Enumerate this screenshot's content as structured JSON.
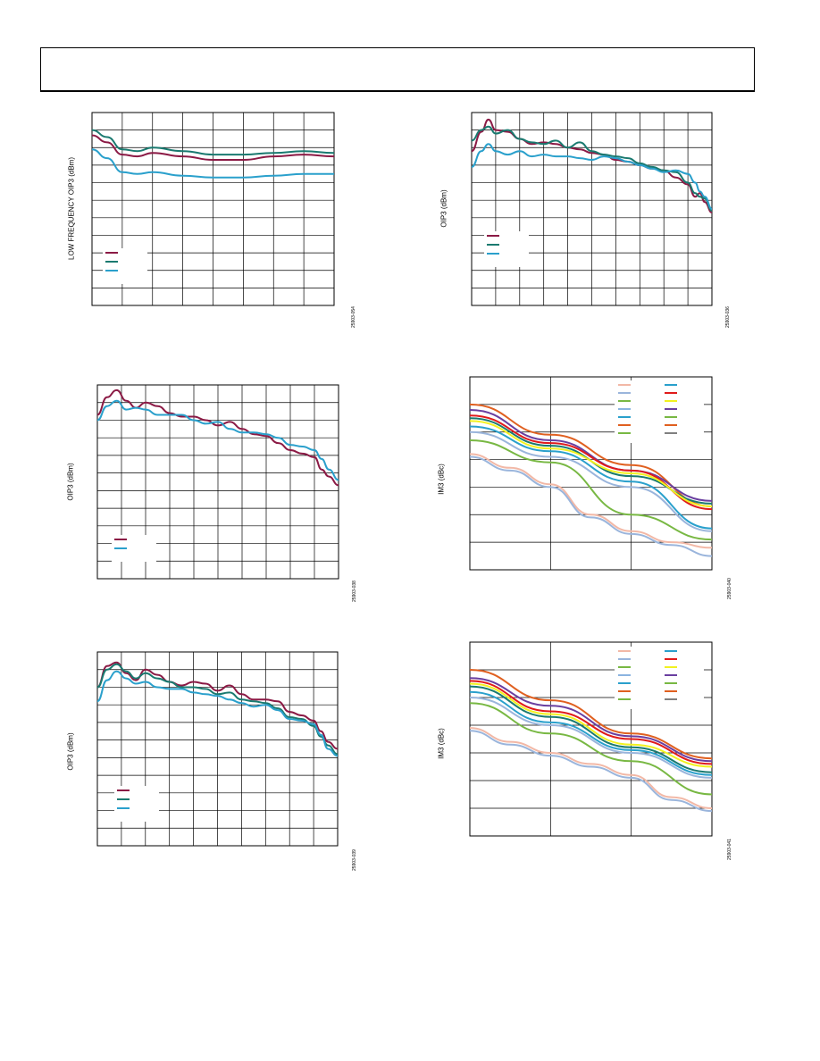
{
  "header": {},
  "chart_data": [
    {
      "type": "line",
      "ylabel": "LOW FREQUENCY OIP3 (dBm)",
      "figure_id": "25903-054",
      "grid": true,
      "grid_x_divisions": 8,
      "grid_y_divisions": 11,
      "xlim": [
        0,
        8
      ],
      "ylim": [
        0,
        11
      ],
      "legend_position": "lower-left",
      "series": [
        {
          "color": "#8b1a45",
          "x": [
            0,
            0.5,
            1,
            1.5,
            2,
            3,
            4,
            5,
            6,
            7,
            8
          ],
          "y": [
            9.7,
            9.3,
            8.6,
            8.5,
            8.7,
            8.5,
            8.3,
            8.3,
            8.5,
            8.6,
            8.5
          ]
        },
        {
          "color": "#1a7a70",
          "x": [
            0,
            0.5,
            1,
            1.5,
            2,
            3,
            4,
            5,
            6,
            7,
            8
          ],
          "y": [
            10.0,
            9.6,
            8.9,
            8.8,
            9.0,
            8.8,
            8.6,
            8.6,
            8.7,
            8.8,
            8.7
          ]
        },
        {
          "color": "#2aa0cc",
          "x": [
            0,
            0.5,
            1,
            1.5,
            2,
            3,
            4,
            5,
            6,
            7,
            8
          ],
          "y": [
            8.9,
            8.4,
            7.6,
            7.5,
            7.6,
            7.4,
            7.3,
            7.3,
            7.4,
            7.5,
            7.5
          ]
        }
      ]
    },
    {
      "type": "line",
      "ylabel": "OIP3 (dBm)",
      "figure_id": "25903-036",
      "grid": true,
      "grid_x_divisions": 10,
      "grid_y_divisions": 11,
      "xlim": [
        0,
        10
      ],
      "ylim": [
        0,
        11
      ],
      "legend_position": "lower-left",
      "series": [
        {
          "color": "#8b1a45",
          "x": [
            0,
            0.4,
            0.7,
            1,
            1.5,
            2,
            2.5,
            3,
            3.5,
            4,
            4.5,
            5,
            5.5,
            6,
            6.5,
            7,
            7.5,
            8,
            8.5,
            9,
            9.3,
            9.5,
            9.7,
            10
          ],
          "y": [
            8.8,
            9.9,
            10.6,
            10.0,
            9.9,
            9.5,
            9.2,
            9.3,
            9.2,
            9.0,
            8.9,
            8.7,
            8.6,
            8.3,
            8.2,
            8.0,
            7.8,
            7.7,
            7.3,
            6.9,
            6.2,
            6.4,
            5.9,
            5.3
          ]
        },
        {
          "color": "#1a7a70",
          "x": [
            0,
            0.4,
            0.7,
            1,
            1.5,
            2,
            2.5,
            3,
            3.5,
            4,
            4.5,
            5,
            5.5,
            6,
            6.5,
            7,
            7.5,
            8,
            8.5,
            9,
            9.3,
            9.5,
            9.7,
            10
          ],
          "y": [
            9.4,
            10.0,
            10.2,
            9.8,
            10.0,
            9.5,
            9.3,
            9.2,
            9.4,
            9.0,
            9.3,
            8.8,
            8.6,
            8.5,
            8.4,
            8.1,
            7.9,
            7.7,
            7.6,
            7.0,
            6.4,
            6.2,
            6.1,
            5.4
          ]
        },
        {
          "color": "#2aa0cc",
          "x": [
            0,
            0.4,
            0.7,
            1,
            1.5,
            2,
            2.5,
            3,
            3.5,
            4,
            4.5,
            5,
            5.5,
            6,
            6.5,
            7,
            7.5,
            8,
            8.5,
            9,
            9.3,
            9.5,
            9.7,
            10
          ],
          "y": [
            7.9,
            8.8,
            9.2,
            8.8,
            8.6,
            8.8,
            8.5,
            8.6,
            8.5,
            8.5,
            8.4,
            8.3,
            8.5,
            8.4,
            8.2,
            8.0,
            7.8,
            7.6,
            7.7,
            7.5,
            7.0,
            6.5,
            6.2,
            5.5
          ]
        }
      ]
    },
    {
      "type": "line",
      "ylabel": "OIP3 (dBm)",
      "figure_id": "25903-038",
      "grid": true,
      "grid_x_divisions": 10,
      "grid_y_divisions": 11,
      "xlim": [
        0,
        10
      ],
      "ylim": [
        0,
        11
      ],
      "legend_position": "lower-left",
      "series": [
        {
          "color": "#8b1a45",
          "x": [
            0,
            0.4,
            0.8,
            1.2,
            1.6,
            2,
            2.5,
            3,
            3.5,
            4,
            4.5,
            5,
            5.5,
            6,
            6.5,
            7,
            7.5,
            8,
            8.5,
            9,
            9.3,
            9.6,
            10
          ],
          "y": [
            9.3,
            10.3,
            10.7,
            10.1,
            9.7,
            10.0,
            9.8,
            9.4,
            9.2,
            9.2,
            9.0,
            8.7,
            8.9,
            8.5,
            8.2,
            8.1,
            7.7,
            7.3,
            7.1,
            6.9,
            6.2,
            5.8,
            5.3
          ]
        },
        {
          "color": "#2aa0cc",
          "x": [
            0,
            0.4,
            0.8,
            1.2,
            1.6,
            2,
            2.5,
            3,
            3.5,
            4,
            4.5,
            5,
            5.5,
            6,
            6.5,
            7,
            7.5,
            8,
            8.5,
            9,
            9.3,
            9.6,
            10
          ],
          "y": [
            9.0,
            9.8,
            10.1,
            9.6,
            9.7,
            9.6,
            9.3,
            9.3,
            9.3,
            9.0,
            8.8,
            8.9,
            8.5,
            8.3,
            8.3,
            8.2,
            8.0,
            7.6,
            7.5,
            7.3,
            6.8,
            6.2,
            5.6
          ]
        }
      ]
    },
    {
      "type": "line",
      "ylabel": "IM3 (dBc)",
      "figure_id": "25903-040",
      "grid": true,
      "grid_x_divisions": 3,
      "grid_y_divisions": 7,
      "xlim": [
        0,
        3
      ],
      "ylim": [
        0,
        7
      ],
      "legend_position": "top-right",
      "legend_colors": [
        [
          "#f2b8a6",
          "#2aa0cc"
        ],
        [
          "#9ab5dc",
          "#e01b1b"
        ],
        [
          "#78b843",
          "#f2f220"
        ],
        [
          "#8bb4e0",
          "#6a3fa0"
        ],
        [
          "#2aa0cc",
          "#78b843"
        ],
        [
          "#e06020",
          "#e06020"
        ],
        [
          "#78b843",
          "#808080"
        ]
      ],
      "series": [
        {
          "color": "#e06020",
          "x": [
            0,
            1,
            2,
            3
          ],
          "y": [
            6.0,
            4.9,
            3.8,
            2.3
          ]
        },
        {
          "color": "#6a3fa0",
          "x": [
            0,
            1,
            2,
            3
          ],
          "y": [
            5.8,
            4.7,
            3.6,
            2.5
          ]
        },
        {
          "color": "#e01b1b",
          "x": [
            0,
            1,
            2,
            3
          ],
          "y": [
            5.6,
            4.6,
            3.6,
            2.2
          ]
        },
        {
          "color": "#1a7a70",
          "x": [
            0,
            1,
            2,
            3
          ],
          "y": [
            5.5,
            4.5,
            3.4,
            2.4
          ]
        },
        {
          "color": "#f2f220",
          "x": [
            0,
            1,
            2,
            3
          ],
          "y": [
            5.4,
            4.4,
            3.5,
            2.3
          ]
        },
        {
          "color": "#2aa0cc",
          "x": [
            0,
            1,
            2,
            3
          ],
          "y": [
            5.2,
            4.3,
            3.2,
            1.5
          ]
        },
        {
          "color": "#9ab5dc",
          "x": [
            0,
            1,
            2,
            3
          ],
          "y": [
            5.0,
            4.1,
            3.0,
            1.4
          ]
        },
        {
          "color": "#78b843",
          "x": [
            0,
            1,
            2,
            3
          ],
          "y": [
            4.7,
            3.9,
            2.0,
            1.1
          ]
        },
        {
          "color": "#f2b8a6",
          "x": [
            0,
            0.5,
            1,
            1.5,
            2,
            2.5,
            3
          ],
          "y": [
            4.2,
            3.7,
            3.1,
            2.0,
            1.4,
            1.0,
            0.8
          ]
        },
        {
          "color": "#9ab5dc",
          "x": [
            0,
            0.5,
            1,
            1.5,
            2,
            2.5,
            3
          ],
          "y": [
            4.1,
            3.6,
            3.0,
            1.9,
            1.3,
            0.9,
            0.5
          ]
        }
      ]
    },
    {
      "type": "line",
      "ylabel": "OIP3 (dBm)",
      "figure_id": "25903-039",
      "grid": true,
      "grid_x_divisions": 10,
      "grid_y_divisions": 11,
      "xlim": [
        0,
        10
      ],
      "ylim": [
        0,
        11
      ],
      "legend_position": "lower-left",
      "series": [
        {
          "color": "#8b1a45",
          "x": [
            0,
            0.4,
            0.8,
            1.2,
            1.6,
            2,
            2.5,
            3,
            3.5,
            4,
            4.5,
            5,
            5.5,
            6,
            6.5,
            7,
            7.5,
            8,
            8.5,
            9,
            9.3,
            9.6,
            10
          ],
          "y": [
            9.0,
            10.2,
            10.4,
            9.8,
            9.4,
            10.0,
            9.7,
            9.3,
            9.1,
            9.3,
            9.2,
            8.8,
            9.1,
            8.6,
            8.3,
            8.3,
            8.2,
            7.6,
            7.4,
            7.1,
            6.5,
            5.9,
            5.5
          ]
        },
        {
          "color": "#1a7a70",
          "x": [
            0,
            0.4,
            0.8,
            1.2,
            1.6,
            2,
            2.5,
            3,
            3.5,
            4,
            4.5,
            5,
            5.5,
            6,
            6.5,
            7,
            7.5,
            8,
            8.5,
            9,
            9.3,
            9.6,
            10
          ],
          "y": [
            9.0,
            10.0,
            10.3,
            9.9,
            9.5,
            9.8,
            9.5,
            9.3,
            9.0,
            9.0,
            8.9,
            8.6,
            8.7,
            8.3,
            8.2,
            8.1,
            7.8,
            7.3,
            7.2,
            6.8,
            6.2,
            5.7,
            5.2
          ]
        },
        {
          "color": "#2aa0cc",
          "x": [
            0,
            0.4,
            0.8,
            1.2,
            1.6,
            2,
            2.5,
            3,
            3.5,
            4,
            4.5,
            5,
            5.5,
            6,
            6.5,
            7,
            7.5,
            8,
            8.5,
            9,
            9.3,
            9.6,
            10
          ],
          "y": [
            8.2,
            9.4,
            9.9,
            9.5,
            9.2,
            9.3,
            9.0,
            8.9,
            8.9,
            8.7,
            8.6,
            8.5,
            8.3,
            8.1,
            7.9,
            8.0,
            7.7,
            7.2,
            7.1,
            6.9,
            6.3,
            5.5,
            5.1
          ]
        }
      ]
    },
    {
      "type": "line",
      "ylabel": "IM3 (dBc)",
      "figure_id": "25903-041",
      "grid": true,
      "grid_x_divisions": 3,
      "grid_y_divisions": 7,
      "xlim": [
        0,
        3
      ],
      "ylim": [
        0,
        7
      ],
      "legend_position": "top-right",
      "legend_colors": [
        [
          "#f2b8a6",
          "#2aa0cc"
        ],
        [
          "#9ab5dc",
          "#e01b1b"
        ],
        [
          "#78b843",
          "#f2f220"
        ],
        [
          "#8bb4e0",
          "#6a3fa0"
        ],
        [
          "#2aa0cc",
          "#78b843"
        ],
        [
          "#e06020",
          "#e06020"
        ],
        [
          "#78b843",
          "#808080"
        ]
      ],
      "series": [
        {
          "color": "#e06020",
          "x": [
            0,
            1,
            2,
            3
          ],
          "y": [
            6.0,
            4.9,
            3.7,
            2.8
          ]
        },
        {
          "color": "#6a3fa0",
          "x": [
            0,
            1,
            2,
            3
          ],
          "y": [
            5.7,
            4.7,
            3.6,
            2.7
          ]
        },
        {
          "color": "#e01b1b",
          "x": [
            0,
            1,
            2,
            3
          ],
          "y": [
            5.6,
            4.5,
            3.5,
            2.6
          ]
        },
        {
          "color": "#f2f220",
          "x": [
            0,
            1,
            2,
            3
          ],
          "y": [
            5.5,
            4.4,
            3.3,
            2.5
          ]
        },
        {
          "color": "#1a7a70",
          "x": [
            0,
            1,
            2,
            3
          ],
          "y": [
            5.4,
            4.3,
            3.2,
            2.3
          ]
        },
        {
          "color": "#2aa0cc",
          "x": [
            0,
            1,
            2,
            3
          ],
          "y": [
            5.2,
            4.1,
            3.1,
            2.2
          ]
        },
        {
          "color": "#9ab5dc",
          "x": [
            0,
            1,
            2,
            3
          ],
          "y": [
            5.0,
            4.0,
            3.0,
            2.1
          ]
        },
        {
          "color": "#78b843",
          "x": [
            0,
            1,
            2,
            3
          ],
          "y": [
            4.8,
            3.7,
            2.7,
            1.5
          ]
        },
        {
          "color": "#f2b8a6",
          "x": [
            0,
            0.5,
            1,
            1.5,
            2,
            2.5,
            3
          ],
          "y": [
            3.9,
            3.4,
            3.0,
            2.6,
            2.2,
            1.4,
            1.0
          ]
        },
        {
          "color": "#9ab5dc",
          "x": [
            0,
            0.5,
            1,
            1.5,
            2,
            2.5,
            3
          ],
          "y": [
            3.8,
            3.3,
            2.9,
            2.5,
            2.1,
            1.3,
            0.9
          ]
        }
      ]
    }
  ]
}
